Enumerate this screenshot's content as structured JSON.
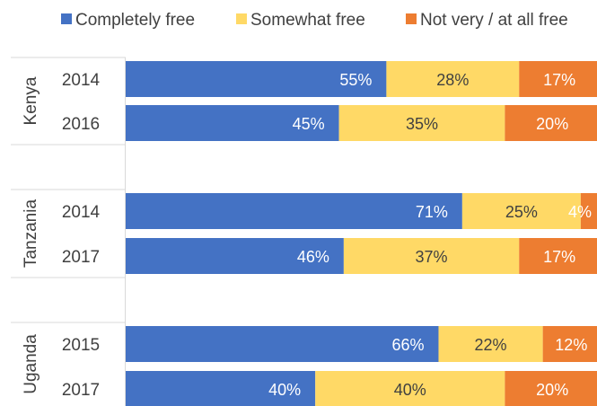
{
  "chart_data": {
    "type": "bar",
    "orientation": "horizontal",
    "stacked": true,
    "percent": true,
    "legend_position": "top",
    "grid": false,
    "xlim": [
      0,
      100
    ],
    "series": [
      {
        "name": "Completely free",
        "color": "#4472C4",
        "label_color": "#ffffff"
      },
      {
        "name": "Somewhat free",
        "color": "#FFD966",
        "label_color": "#404040"
      },
      {
        "name": "Not very / at all free",
        "color": "#ED7D31",
        "label_color": "#ffffff"
      }
    ],
    "groups": [
      {
        "name": "Kenya",
        "rows": [
          {
            "year": "2014",
            "values": [
              55,
              28,
              17
            ],
            "labels": [
              "55%",
              "28%",
              "17%"
            ]
          },
          {
            "year": "2016",
            "values": [
              45,
              35,
              20
            ],
            "labels": [
              "45%",
              "35%",
              "20%"
            ]
          }
        ]
      },
      {
        "name": "Tanzania",
        "rows": [
          {
            "year": "2014",
            "values": [
              71,
              25,
              4
            ],
            "labels": [
              "71%",
              "25%",
              "4%"
            ]
          },
          {
            "year": "2017",
            "values": [
              46,
              37,
              17
            ],
            "labels": [
              "46%",
              "37%",
              "17%"
            ]
          }
        ]
      },
      {
        "name": "Uganda",
        "rows": [
          {
            "year": "2015",
            "values": [
              66,
              22,
              12
            ],
            "labels": [
              "66%",
              "22%",
              "12%"
            ]
          },
          {
            "year": "2017",
            "values": [
              40,
              40,
              20
            ],
            "labels": [
              "40%",
              "40%",
              "20%"
            ]
          }
        ]
      }
    ]
  }
}
